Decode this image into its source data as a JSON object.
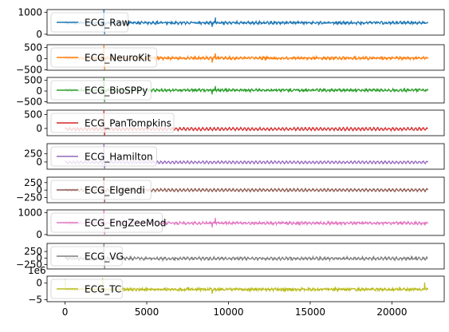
{
  "chart_data": {
    "type": "line",
    "layout": "stacked subplots, shared x-axis",
    "legend_position": "upper-left of each subplot",
    "x_ticks": [
      0,
      5000,
      10000,
      15000,
      20000
    ],
    "x_tick_labels": [
      "0",
      "5000",
      "10000",
      "15000",
      "20000"
    ],
    "xlim": [
      -1100,
      23200
    ],
    "panels": [
      {
        "name": "ECG_Raw",
        "color": "#1f77b4",
        "ylim": [
          -40,
          1120
        ],
        "y_ticks": [
          0,
          1000
        ],
        "y_tick_labels": [
          "0",
          "1000"
        ],
        "baseline": 520,
        "noise": 40,
        "amplitude": 30,
        "events": [
          {
            "x": 2380,
            "y": 1110
          },
          {
            "x": 2420,
            "y": 0
          },
          {
            "x": 9000,
            "y": 330
          },
          {
            "x": 9200,
            "y": 760
          }
        ]
      },
      {
        "name": "ECG_NeuroKit",
        "color": "#ff7f0e",
        "ylim": [
          -520,
          620
        ],
        "y_ticks": [
          -500,
          0,
          500
        ],
        "y_tick_labels": [
          "−500",
          "0",
          "500"
        ],
        "baseline": 20,
        "noise": 40,
        "amplitude": 30,
        "events": [
          {
            "x": 2380,
            "y": 590
          },
          {
            "x": 2420,
            "y": -500
          },
          {
            "x": 9000,
            "y": -180
          },
          {
            "x": 9200,
            "y": 230
          }
        ]
      },
      {
        "name": "ECG_BioSPPy",
        "color": "#2ca02c",
        "ylim": [
          -560,
          640
        ],
        "y_ticks": [
          -500,
          0,
          500
        ],
        "y_tick_labels": [
          "−500",
          "0",
          "500"
        ],
        "baseline": 40,
        "noise": 40,
        "amplitude": 30,
        "events": [
          {
            "x": 2380,
            "y": 610
          },
          {
            "x": 2420,
            "y": -520
          },
          {
            "x": 9000,
            "y": -160
          },
          {
            "x": 9200,
            "y": 230
          }
        ]
      },
      {
        "name": "ECG_PanTompkins",
        "color": "#d62728",
        "ylim": [
          -260,
          660
        ],
        "y_ticks": [
          0,
          500
        ],
        "y_tick_labels": [
          "0",
          "500"
        ],
        "baseline": -20,
        "noise": 15,
        "amplitude": 45,
        "events": [
          {
            "x": 2380,
            "y": 640
          },
          {
            "x": 2420,
            "y": -240
          }
        ]
      },
      {
        "name": "ECG_Hamilton",
        "color": "#9467bd",
        "ylim": [
          -220,
          560
        ],
        "y_ticks": [
          0,
          250
        ],
        "y_tick_labels": [
          "0",
          "250"
        ],
        "baseline": -10,
        "noise": 10,
        "amplitude": 35,
        "events": [
          {
            "x": 2380,
            "y": 540
          },
          {
            "x": 2420,
            "y": -200
          }
        ]
      },
      {
        "name": "ECG_Elgendi",
        "color": "#8c564b",
        "ylim": [
          -420,
          430
        ],
        "y_ticks": [
          -250,
          0,
          250
        ],
        "y_tick_labels": [
          "−250",
          "0",
          "250"
        ],
        "baseline": 0,
        "noise": 12,
        "amplitude": 40,
        "events": [
          {
            "x": 2380,
            "y": 410
          },
          {
            "x": 2420,
            "y": -400
          }
        ]
      },
      {
        "name": "ECG_EngZeeMod",
        "color": "#e377c2",
        "ylim": [
          -40,
          1120
        ],
        "y_ticks": [
          0,
          1000
        ],
        "y_tick_labels": [
          "0",
          "1000"
        ],
        "baseline": 520,
        "noise": 40,
        "amplitude": 30,
        "events": [
          {
            "x": 2380,
            "y": 1110
          },
          {
            "x": 2420,
            "y": 0
          },
          {
            "x": 9000,
            "y": 330
          },
          {
            "x": 9200,
            "y": 760
          }
        ]
      },
      {
        "name": "ECG_VG",
        "color": "#7f7f7f",
        "ylim": [
          -420,
          560
        ],
        "y_ticks": [
          -250,
          0,
          250
        ],
        "y_tick_labels": [
          "−250",
          "0",
          "250"
        ],
        "baseline": -20,
        "noise": 30,
        "amplitude": 35,
        "events": [
          {
            "x": 2380,
            "y": 540
          },
          {
            "x": 2420,
            "y": -400
          }
        ]
      },
      {
        "name": "ECG_TC",
        "color": "#bcbd22",
        "ylim": [
          -5.6,
          2.1
        ],
        "y_ticks": [
          -5,
          0
        ],
        "y_tick_labels": [
          "−5",
          "0"
        ],
        "offset_label": "1e6",
        "baseline": -1.9,
        "noise": 0.35,
        "amplitude": 0.1,
        "events": [
          {
            "x": 0,
            "y": 1.3
          },
          {
            "x": 2300,
            "y": 1.5
          },
          {
            "x": 9000,
            "y": -3.2
          },
          {
            "x": 22000,
            "y": 0.2
          }
        ]
      }
    ]
  }
}
